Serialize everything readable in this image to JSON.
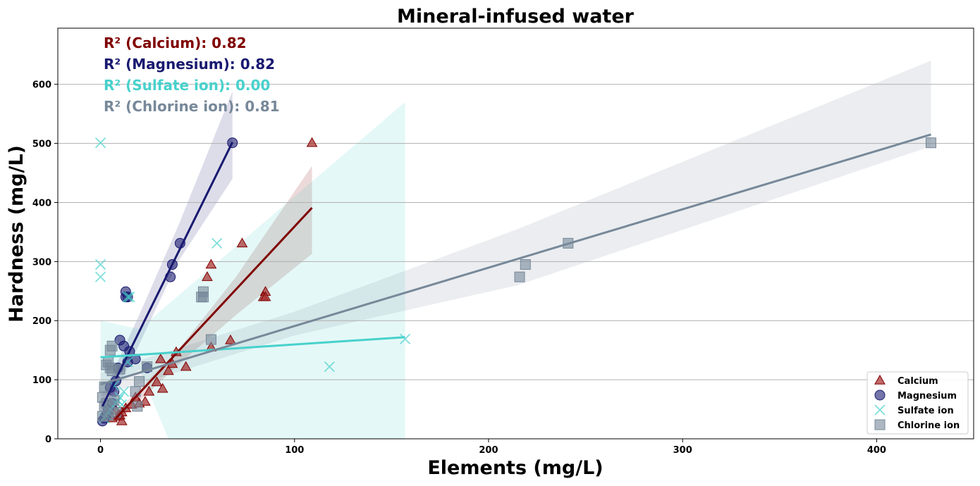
{
  "chart_data": {
    "type": "scatter",
    "title": "Mineral-infused water",
    "xlabel": "Elements (mg/L)",
    "ylabel": "Hardness (mg/L)",
    "xlim": [
      -22,
      450
    ],
    "ylim": [
      0,
      695
    ],
    "xticks": [
      0,
      100,
      200,
      300,
      400
    ],
    "yticks": [
      0,
      100,
      200,
      300,
      400,
      500,
      600
    ],
    "grid": "horizontal",
    "legend_position": "lower-right",
    "annotations": [
      {
        "text": "R² (Calcium): 0.82",
        "color": "#800000"
      },
      {
        "text": "R² (Magnesium): 0.82",
        "color": "#191970"
      },
      {
        "text": "R² (Sulfate ion): 0.00",
        "color": "#48d1cc"
      },
      {
        "text": "R² (Chlorine ion): 0.81",
        "color": "#778899"
      }
    ],
    "series": [
      {
        "name": "Calcium",
        "marker": "triangle",
        "color": "#800000",
        "fill": "#a52a2a",
        "x": [
          109,
          73,
          57,
          55,
          85,
          84,
          85,
          67,
          57,
          39,
          44,
          31,
          35,
          37,
          32,
          29,
          25,
          23,
          16,
          13,
          11,
          10,
          9,
          11,
          18,
          20,
          8,
          6
        ],
        "y": [
          501,
          331,
          295,
          274,
          249,
          240,
          240,
          167,
          155,
          147,
          122,
          135,
          115,
          127,
          85,
          96,
          80,
          63,
          58,
          52,
          45,
          40,
          38,
          30,
          70,
          60,
          48,
          35
        ],
        "fit": {
          "x0": 8,
          "y0": 35,
          "x1": 109,
          "y1": 391
        },
        "band": {
          "lower": [
            [
              8,
              27
            ],
            [
              40,
              125
            ],
            [
              70,
              210
            ],
            [
              109,
              313
            ]
          ],
          "upper": [
            [
              8,
              45
            ],
            [
              40,
              150
            ],
            [
              70,
              275
            ],
            [
              109,
              462
            ]
          ]
        }
      },
      {
        "name": "Magnesium",
        "marker": "circle",
        "color": "#191970",
        "fill": "#191970",
        "x": [
          68,
          41,
          37,
          36,
          13,
          13,
          14,
          10,
          15,
          18,
          14,
          12,
          24,
          8,
          9,
          7,
          6,
          5,
          4,
          3,
          2,
          1
        ],
        "y": [
          501,
          331,
          295,
          274,
          249,
          240,
          240,
          167,
          148,
          135,
          130,
          157,
          120,
          98,
          120,
          80,
          60,
          87,
          50,
          40,
          35,
          30
        ],
        "fit": {
          "x0": 1,
          "y0": 55,
          "x1": 68,
          "y1": 502
        },
        "band": {
          "lower": [
            [
              1,
              35
            ],
            [
              20,
              160
            ],
            [
              40,
              300
            ],
            [
              68,
              440
            ]
          ],
          "upper": [
            [
              1,
              75
            ],
            [
              20,
              210
            ],
            [
              40,
              360
            ],
            [
              68,
              588
            ]
          ]
        }
      },
      {
        "name": "Sulfate ion",
        "marker": "x",
        "color": "#48d1cc",
        "fill": "#48d1cc",
        "x": [
          0,
          60,
          0,
          0,
          15,
          14,
          157,
          118,
          14,
          12,
          10,
          8,
          6,
          5,
          4,
          3,
          2,
          7,
          9,
          11
        ],
        "y": [
          501,
          331,
          295,
          274,
          240,
          240,
          169,
          122,
          130,
          80,
          70,
          60,
          55,
          50,
          45,
          40,
          35,
          90,
          65,
          58
        ],
        "fit": {
          "x0": 0,
          "y0": 138,
          "x1": 157,
          "y1": 172
        },
        "band": {
          "lower": [
            [
              0,
              70
            ],
            [
              20,
              118
            ],
            [
              35,
              0
            ],
            [
              157,
              0
            ]
          ],
          "upper": [
            [
              0,
              200
            ],
            [
              20,
              186
            ],
            [
              157,
              570
            ]
          ]
        }
      },
      {
        "name": "Chlorine ion",
        "marker": "square",
        "color": "#778899",
        "fill": "#778899",
        "x": [
          428,
          241,
          219,
          216,
          53,
          52,
          53,
          57,
          24,
          20,
          5,
          6,
          4,
          3,
          2,
          1,
          18,
          5,
          7,
          8,
          2,
          3,
          4,
          1,
          19,
          6,
          10
        ],
        "y": [
          501,
          331,
          295,
          274,
          249,
          240,
          240,
          168,
          122,
          97,
          150,
          157,
          130,
          125,
          88,
          70,
          80,
          120,
          65,
          45,
          55,
          60,
          40,
          38,
          55,
          115,
          118
        ],
        "fit": {
          "x0": 0,
          "y0": 92,
          "x1": 428,
          "y1": 515
        },
        "band": {
          "lower": [
            [
              0,
              72
            ],
            [
              100,
              175
            ],
            [
              215,
              260
            ],
            [
              428,
              495
            ]
          ],
          "upper": [
            [
              0,
              112
            ],
            [
              100,
              215
            ],
            [
              215,
              355
            ],
            [
              428,
              640
            ]
          ]
        }
      }
    ]
  }
}
